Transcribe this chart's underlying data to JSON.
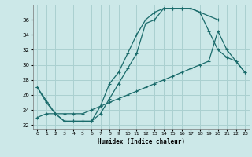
{
  "xlabel": "Humidex (Indice chaleur)",
  "background_color": "#cce8e8",
  "grid_color": "#aad0d0",
  "line_color": "#1a6b6b",
  "xlim": [
    -0.5,
    23.5
  ],
  "ylim": [
    21.5,
    38.0
  ],
  "yticks": [
    22,
    24,
    26,
    28,
    30,
    32,
    34,
    36
  ],
  "xticks": [
    0,
    1,
    2,
    3,
    4,
    5,
    6,
    7,
    8,
    9,
    10,
    11,
    12,
    13,
    14,
    15,
    16,
    17,
    18,
    19,
    20,
    21,
    22,
    23
  ],
  "line1_x": [
    0,
    1,
    2,
    3,
    4,
    5,
    6,
    7,
    8,
    9,
    10,
    11,
    12,
    13,
    14,
    15,
    16,
    17,
    18,
    19,
    20
  ],
  "line1_y": [
    27,
    25,
    23.5,
    22.5,
    22.5,
    22.5,
    22.5,
    23.5,
    25.5,
    27.5,
    29.5,
    31.5,
    35.5,
    36.0,
    37.5,
    37.5,
    37.5,
    37.5,
    37.0,
    36.5,
    36.0
  ],
  "line2_x": [
    0,
    2,
    3,
    4,
    5,
    6,
    7,
    8,
    9,
    10,
    11,
    12,
    13,
    14,
    15,
    16,
    17,
    18,
    19,
    20,
    21,
    22,
    23
  ],
  "line2_y": [
    27,
    23.5,
    22.5,
    22.5,
    22.5,
    22.5,
    24.5,
    27.5,
    29.0,
    31.5,
    34.0,
    36.0,
    37.0,
    37.5,
    37.5,
    37.5,
    37.5,
    37.0,
    34.5,
    32.0,
    31.0,
    30.5,
    29.0
  ],
  "line3_x": [
    0,
    1,
    2,
    3,
    4,
    5,
    6,
    7,
    8,
    9,
    10,
    11,
    12,
    13,
    14,
    15,
    16,
    17,
    18,
    19,
    20,
    21,
    22,
    23
  ],
  "line3_y": [
    23,
    23.5,
    23.5,
    23.5,
    23.5,
    23.5,
    24.0,
    24.5,
    25.0,
    25.5,
    26.0,
    26.5,
    27.0,
    27.5,
    28.0,
    28.5,
    29.0,
    29.5,
    30.0,
    30.5,
    34.5,
    32.0,
    30.5,
    29.0
  ]
}
